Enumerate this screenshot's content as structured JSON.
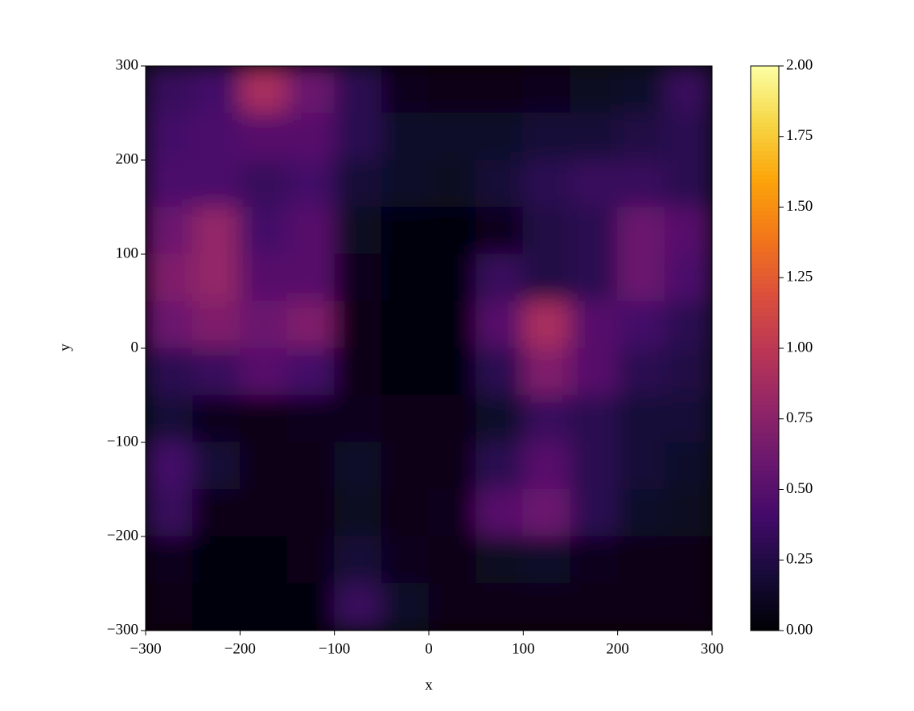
{
  "chart_data": {
    "type": "heatmap",
    "colormap": "inferno",
    "origin": "upper",
    "xlabel": "x",
    "ylabel": "y",
    "xlim": [
      -300,
      300
    ],
    "ylim": [
      -300,
      300
    ],
    "zlim": [
      0,
      2
    ],
    "xticks": [
      {
        "value": -300,
        "label": "−300"
      },
      {
        "value": -200,
        "label": "−200"
      },
      {
        "value": -100,
        "label": "−100"
      },
      0,
      100,
      200,
      300
    ],
    "yticks": [
      {
        "value": -300,
        "label": "−300"
      },
      {
        "value": -200,
        "label": "−200"
      },
      {
        "value": -100,
        "label": "−100"
      },
      0,
      100,
      200,
      300
    ],
    "zticks": [
      {
        "value": 0,
        "label": "0.00"
      },
      {
        "value": 0.25,
        "label": "0.25"
      },
      {
        "value": 0.5,
        "label": "0.50"
      },
      {
        "value": 0.75,
        "label": "0.75"
      },
      {
        "value": 1,
        "label": "1.00"
      },
      {
        "value": 1.25,
        "label": "1.25"
      },
      {
        "value": 1.5,
        "label": "1.50"
      },
      {
        "value": 1.75,
        "label": "1.75"
      },
      {
        "value": 2,
        "label": "2.00"
      }
    ],
    "values": [
      [
        0.35,
        0.4,
        0.9,
        0.6,
        0.3,
        0.1,
        0.08,
        0.08,
        0.1,
        0.12,
        0.15,
        0.35
      ],
      [
        0.4,
        0.45,
        0.5,
        0.5,
        0.3,
        0.15,
        0.15,
        0.15,
        0.2,
        0.2,
        0.25,
        0.3
      ],
      [
        0.45,
        0.45,
        0.35,
        0.4,
        0.2,
        0.15,
        0.12,
        0.2,
        0.3,
        0.35,
        0.35,
        0.3
      ],
      [
        0.6,
        0.8,
        0.4,
        0.5,
        0.12,
        0.05,
        0.05,
        0.1,
        0.25,
        0.3,
        0.6,
        0.5
      ],
      [
        0.7,
        0.8,
        0.5,
        0.5,
        0.1,
        0.05,
        0.05,
        0.35,
        0.25,
        0.3,
        0.6,
        0.45
      ],
      [
        0.6,
        0.7,
        0.6,
        0.7,
        0.08,
        0.04,
        0.05,
        0.5,
        0.9,
        0.5,
        0.4,
        0.3
      ],
      [
        0.3,
        0.35,
        0.5,
        0.4,
        0.08,
        0.04,
        0.05,
        0.3,
        0.7,
        0.5,
        0.3,
        0.25
      ],
      [
        0.2,
        0.1,
        0.08,
        0.1,
        0.1,
        0.06,
        0.06,
        0.15,
        0.35,
        0.3,
        0.2,
        0.2
      ],
      [
        0.4,
        0.2,
        0.08,
        0.08,
        0.15,
        0.08,
        0.08,
        0.3,
        0.5,
        0.3,
        0.2,
        0.15
      ],
      [
        0.35,
        0.08,
        0.06,
        0.06,
        0.12,
        0.06,
        0.1,
        0.5,
        0.6,
        0.3,
        0.15,
        0.12
      ],
      [
        0.1,
        0.05,
        0.05,
        0.06,
        0.2,
        0.1,
        0.08,
        0.12,
        0.15,
        0.1,
        0.08,
        0.08
      ],
      [
        0.06,
        0.04,
        0.04,
        0.05,
        0.35,
        0.15,
        0.06,
        0.06,
        0.08,
        0.06,
        0.06,
        0.06
      ]
    ]
  }
}
